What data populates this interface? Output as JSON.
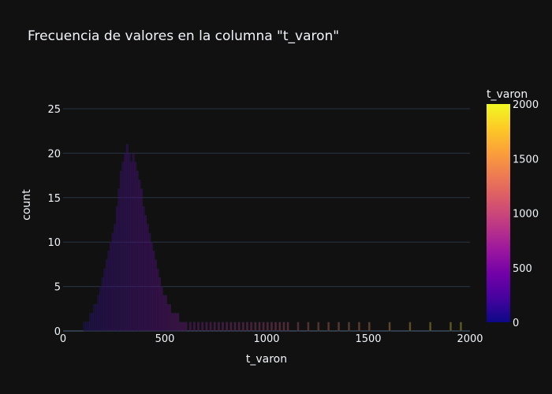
{
  "chart_data": {
    "type": "bar",
    "title": "Frecuencia de valores en la columna \"t_varon\"",
    "xlabel": "t_varon",
    "ylabel": "count",
    "xlim": [
      0,
      2000
    ],
    "ylim": [
      0,
      25
    ],
    "x_ticks": [
      0,
      500,
      1000,
      1500,
      2000
    ],
    "y_ticks": [
      0,
      5,
      10,
      15,
      20,
      25
    ],
    "grid": true,
    "colorbar": {
      "title": "t_varon",
      "range": [
        0,
        2000
      ],
      "ticks": [
        0,
        500,
        1000,
        1500,
        2000
      ],
      "colorscale": [
        "#0d0887",
        "#46039f",
        "#7201a8",
        "#9c179e",
        "#bd3786",
        "#d8576b",
        "#ed7953",
        "#fb9f3a",
        "#fdca26",
        "#f0f921"
      ]
    },
    "bin_width": 10,
    "bin_starts": [
      0,
      10,
      20,
      30,
      40,
      50,
      60,
      70,
      80,
      90,
      100,
      110,
      120,
      130,
      140,
      150,
      160,
      170,
      180,
      190,
      200,
      210,
      220,
      230,
      240,
      250,
      260,
      270,
      280,
      290,
      300,
      310,
      320,
      330,
      340,
      350,
      360,
      370,
      380,
      390,
      400,
      410,
      420,
      430,
      440,
      450,
      460,
      470,
      480,
      490,
      500,
      510,
      520,
      530,
      540,
      550,
      560,
      570,
      580,
      590,
      600,
      620,
      640,
      660,
      680,
      700,
      720,
      740,
      760,
      780,
      800,
      820,
      840,
      860,
      880,
      900,
      920,
      940,
      960,
      980,
      1000,
      1020,
      1040,
      1060,
      1080,
      1100,
      1150,
      1200,
      1250,
      1300,
      1350,
      1400,
      1450,
      1500,
      1600,
      1700,
      1800,
      1900,
      1950
    ],
    "values": [
      0,
      0,
      0,
      0,
      0,
      0,
      0,
      0,
      0,
      0,
      1,
      1,
      1,
      2,
      2,
      3,
      3,
      4,
      5,
      6,
      7,
      8,
      9,
      10,
      11,
      12,
      14,
      16,
      18,
      19,
      20,
      21,
      20,
      19,
      20,
      19,
      18,
      17,
      16,
      14,
      13,
      12,
      11,
      10,
      9,
      8,
      7,
      6,
      5,
      4,
      4,
      3,
      3,
      2,
      2,
      2,
      2,
      1,
      1,
      1,
      1,
      1,
      1,
      1,
      1,
      1,
      1,
      1,
      1,
      1,
      1,
      1,
      1,
      1,
      1,
      1,
      1,
      1,
      1,
      1,
      1,
      1,
      1,
      1,
      1,
      1,
      1,
      1,
      1,
      1,
      1,
      1,
      1,
      1,
      1,
      1,
      1,
      1,
      1
    ]
  }
}
